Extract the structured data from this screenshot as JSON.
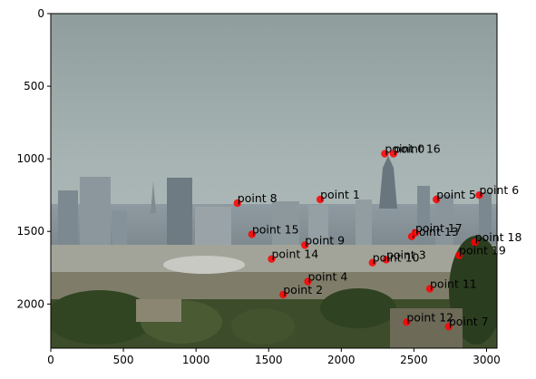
{
  "chart_data": {
    "type": "scatter",
    "background": "photo of a city skyline under an overcast sky, with trees and houses in the foreground",
    "xlim": [
      0,
      3072
    ],
    "ylim": [
      2304,
      0
    ],
    "x_ticks": [
      0,
      500,
      1000,
      1500,
      2000,
      2500,
      3000
    ],
    "y_ticks": [
      0,
      500,
      1000,
      1500,
      2000
    ],
    "marker_color": "#ff0000",
    "points": [
      {
        "label": "point 0",
        "x": 2300,
        "y": 965
      },
      {
        "label": "point 1",
        "x": 1855,
        "y": 1280
      },
      {
        "label": "point 2",
        "x": 1600,
        "y": 1935
      },
      {
        "label": "point 3",
        "x": 2310,
        "y": 1695
      },
      {
        "label": "point 4",
        "x": 1770,
        "y": 1845
      },
      {
        "label": "point 5",
        "x": 2655,
        "y": 1280
      },
      {
        "label": "point 6",
        "x": 2950,
        "y": 1250
      },
      {
        "label": "point 7",
        "x": 2740,
        "y": 2155
      },
      {
        "label": "point 8",
        "x": 1285,
        "y": 1305
      },
      {
        "label": "point 9",
        "x": 1750,
        "y": 1595
      },
      {
        "label": "point 10",
        "x": 2215,
        "y": 1715
      },
      {
        "label": "point 11",
        "x": 2610,
        "y": 1895
      },
      {
        "label": "point 12",
        "x": 2450,
        "y": 2125
      },
      {
        "label": "point 13",
        "x": 2485,
        "y": 1535
      },
      {
        "label": "point 14",
        "x": 1520,
        "y": 1690
      },
      {
        "label": "point 15",
        "x": 1385,
        "y": 1520
      },
      {
        "label": "point 16",
        "x": 2360,
        "y": 965
      },
      {
        "label": "point 17",
        "x": 2510,
        "y": 1510
      },
      {
        "label": "point 18",
        "x": 2920,
        "y": 1575
      },
      {
        "label": "point 19",
        "x": 2810,
        "y": 1665
      }
    ]
  }
}
